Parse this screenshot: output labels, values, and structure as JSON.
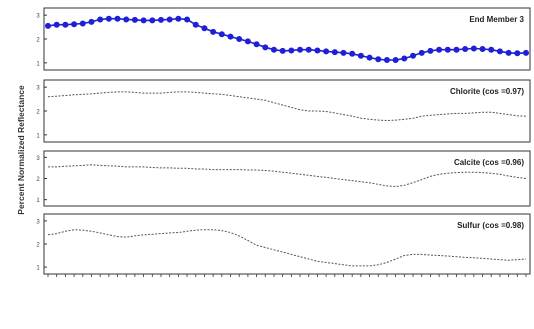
{
  "chart_data": {
    "type": "line",
    "ylabel": "Percent Normalized Reflectance",
    "xlabel": "",
    "x_tick_labels": [],
    "y_tick_labels": [
      "1",
      "2",
      "3"
    ],
    "ylim": [
      0.7,
      3.3
    ],
    "grid": false,
    "series": [
      {
        "name": "End Member 3",
        "style": "dots",
        "color": "#1f1fd6",
        "values": [
          2.55,
          2.6,
          2.6,
          2.62,
          2.65,
          2.72,
          2.82,
          2.85,
          2.85,
          2.82,
          2.8,
          2.78,
          2.78,
          2.8,
          2.82,
          2.85,
          2.82,
          2.6,
          2.45,
          2.3,
          2.2,
          2.1,
          2.0,
          1.9,
          1.78,
          1.65,
          1.55,
          1.5,
          1.52,
          1.55,
          1.55,
          1.52,
          1.48,
          1.45,
          1.42,
          1.38,
          1.3,
          1.22,
          1.15,
          1.12,
          1.12,
          1.18,
          1.3,
          1.42,
          1.5,
          1.55,
          1.55,
          1.55,
          1.58,
          1.6,
          1.58,
          1.55,
          1.48,
          1.42,
          1.4,
          1.42
        ]
      },
      {
        "name": "Chlorite  (cos =0.97)",
        "style": "dashed",
        "color": "#555555",
        "values": [
          2.6,
          2.62,
          2.65,
          2.68,
          2.7,
          2.72,
          2.75,
          2.78,
          2.8,
          2.8,
          2.78,
          2.75,
          2.75,
          2.75,
          2.78,
          2.8,
          2.8,
          2.78,
          2.75,
          2.72,
          2.7,
          2.65,
          2.6,
          2.55,
          2.5,
          2.45,
          2.35,
          2.25,
          2.15,
          2.05,
          2.0,
          2.0,
          1.98,
          1.92,
          1.85,
          1.78,
          1.7,
          1.65,
          1.62,
          1.6,
          1.62,
          1.65,
          1.7,
          1.78,
          1.82,
          1.85,
          1.88,
          1.9,
          1.9,
          1.92,
          1.95,
          1.95,
          1.9,
          1.85,
          1.8,
          1.78
        ]
      },
      {
        "name": "Calcite  (cos =0.96)",
        "style": "dashed",
        "color": "#555555",
        "values": [
          2.55,
          2.55,
          2.58,
          2.6,
          2.62,
          2.65,
          2.62,
          2.6,
          2.58,
          2.55,
          2.55,
          2.55,
          2.52,
          2.5,
          2.5,
          2.48,
          2.48,
          2.45,
          2.45,
          2.42,
          2.42,
          2.42,
          2.42,
          2.4,
          2.4,
          2.38,
          2.35,
          2.3,
          2.25,
          2.2,
          2.15,
          2.1,
          2.05,
          2.0,
          1.95,
          1.9,
          1.85,
          1.8,
          1.72,
          1.65,
          1.62,
          1.68,
          1.8,
          1.95,
          2.1,
          2.2,
          2.25,
          2.28,
          2.3,
          2.3,
          2.28,
          2.25,
          2.2,
          2.12,
          2.05,
          2.0
        ]
      },
      {
        "name": "Sulfur  (cos =0.98)",
        "style": "dashed",
        "color": "#555555",
        "values": [
          2.4,
          2.45,
          2.55,
          2.62,
          2.6,
          2.55,
          2.48,
          2.4,
          2.32,
          2.3,
          2.35,
          2.4,
          2.42,
          2.45,
          2.48,
          2.5,
          2.55,
          2.6,
          2.62,
          2.62,
          2.58,
          2.5,
          2.35,
          2.15,
          1.95,
          1.85,
          1.75,
          1.65,
          1.55,
          1.45,
          1.35,
          1.25,
          1.2,
          1.15,
          1.1,
          1.05,
          1.05,
          1.05,
          1.1,
          1.2,
          1.35,
          1.5,
          1.55,
          1.55,
          1.52,
          1.5,
          1.48,
          1.45,
          1.42,
          1.4,
          1.38,
          1.35,
          1.32,
          1.3,
          1.32,
          1.35
        ]
      }
    ]
  }
}
